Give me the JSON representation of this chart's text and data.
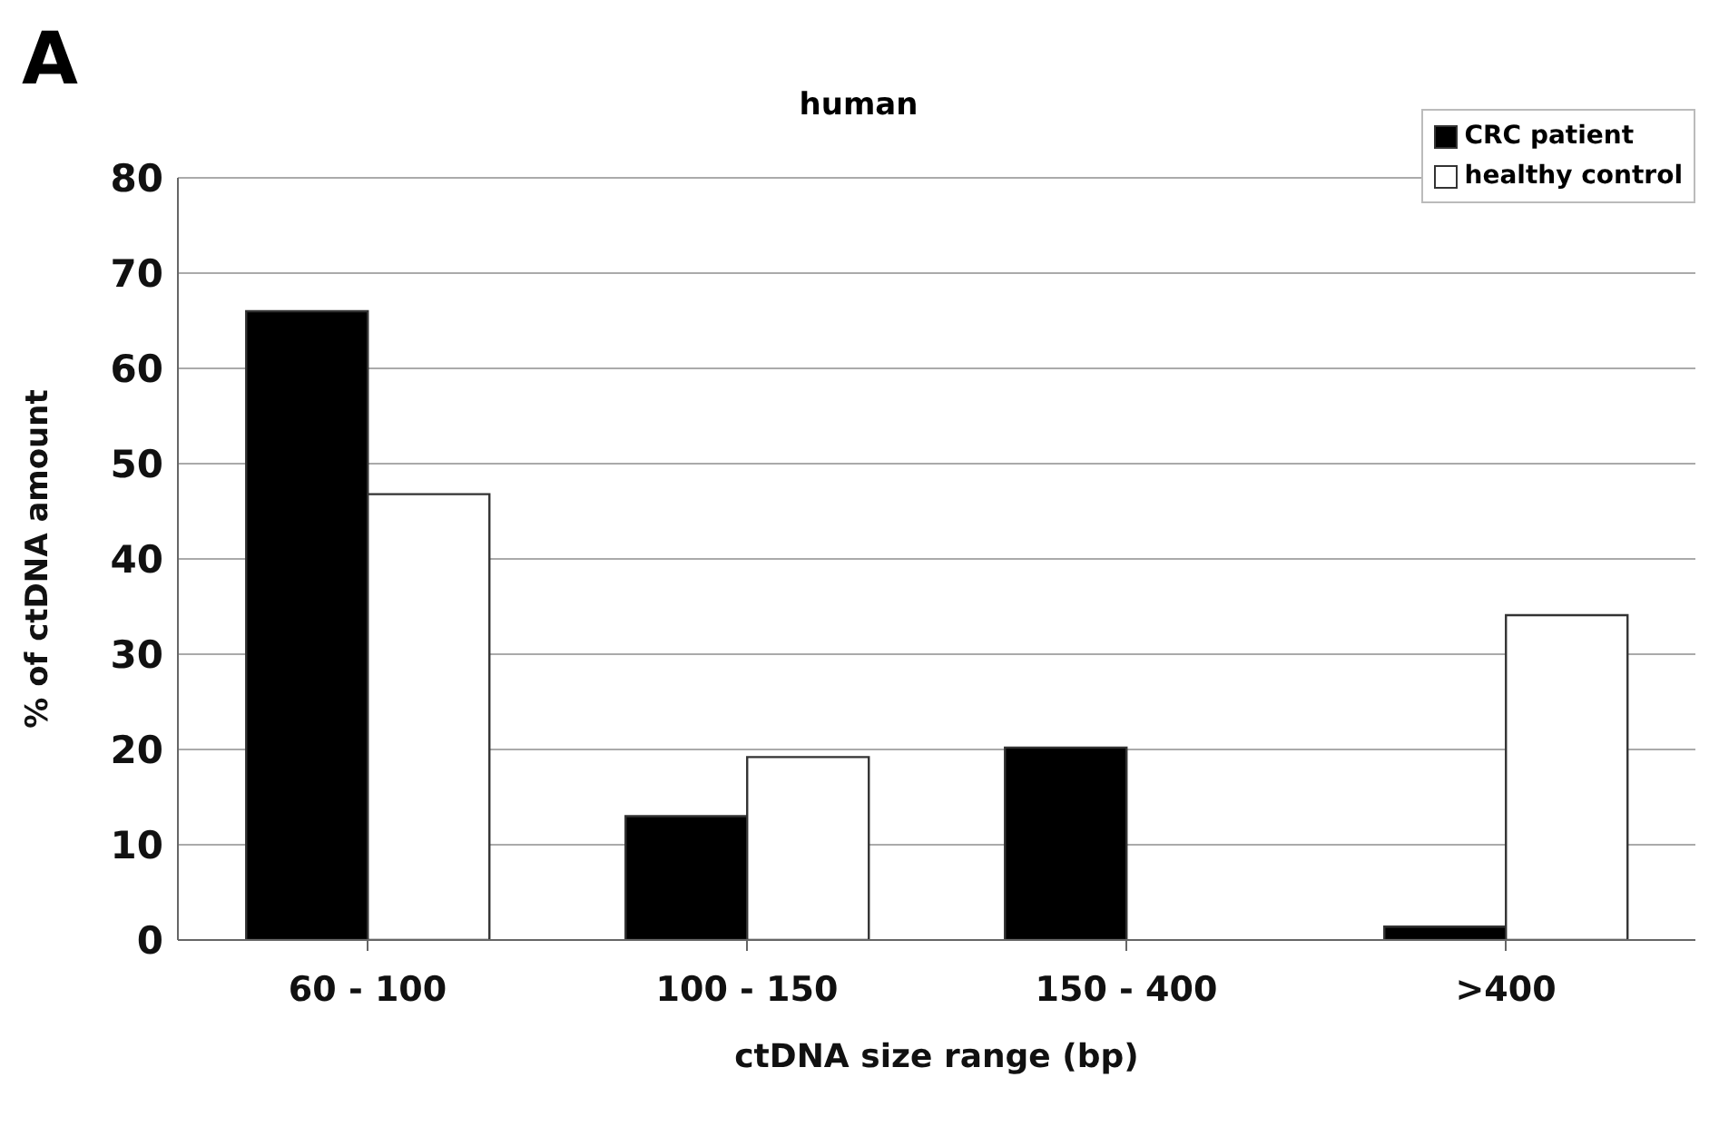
{
  "chart_data": {
    "type": "bar",
    "title": "human",
    "xlabel": "ctDNA size range (bp)",
    "ylabel": "% of ctDNA amount",
    "annotations": [
      "A"
    ],
    "categories": [
      "60 - 100",
      "100 - 150",
      "150 - 400",
      ">400"
    ],
    "series": [
      {
        "name": "CRC patient",
        "color": "#000000",
        "values": [
          66,
          13,
          20.2,
          1.4
        ]
      },
      {
        "name": "healthy control",
        "color": "#ffffff",
        "values": [
          46.8,
          19.2,
          0,
          34.1
        ]
      }
    ],
    "ylim": [
      0,
      80
    ],
    "yticks": [
      0,
      10,
      20,
      30,
      40,
      50,
      60,
      70,
      80
    ],
    "grid": "y",
    "legend": "top right"
  }
}
